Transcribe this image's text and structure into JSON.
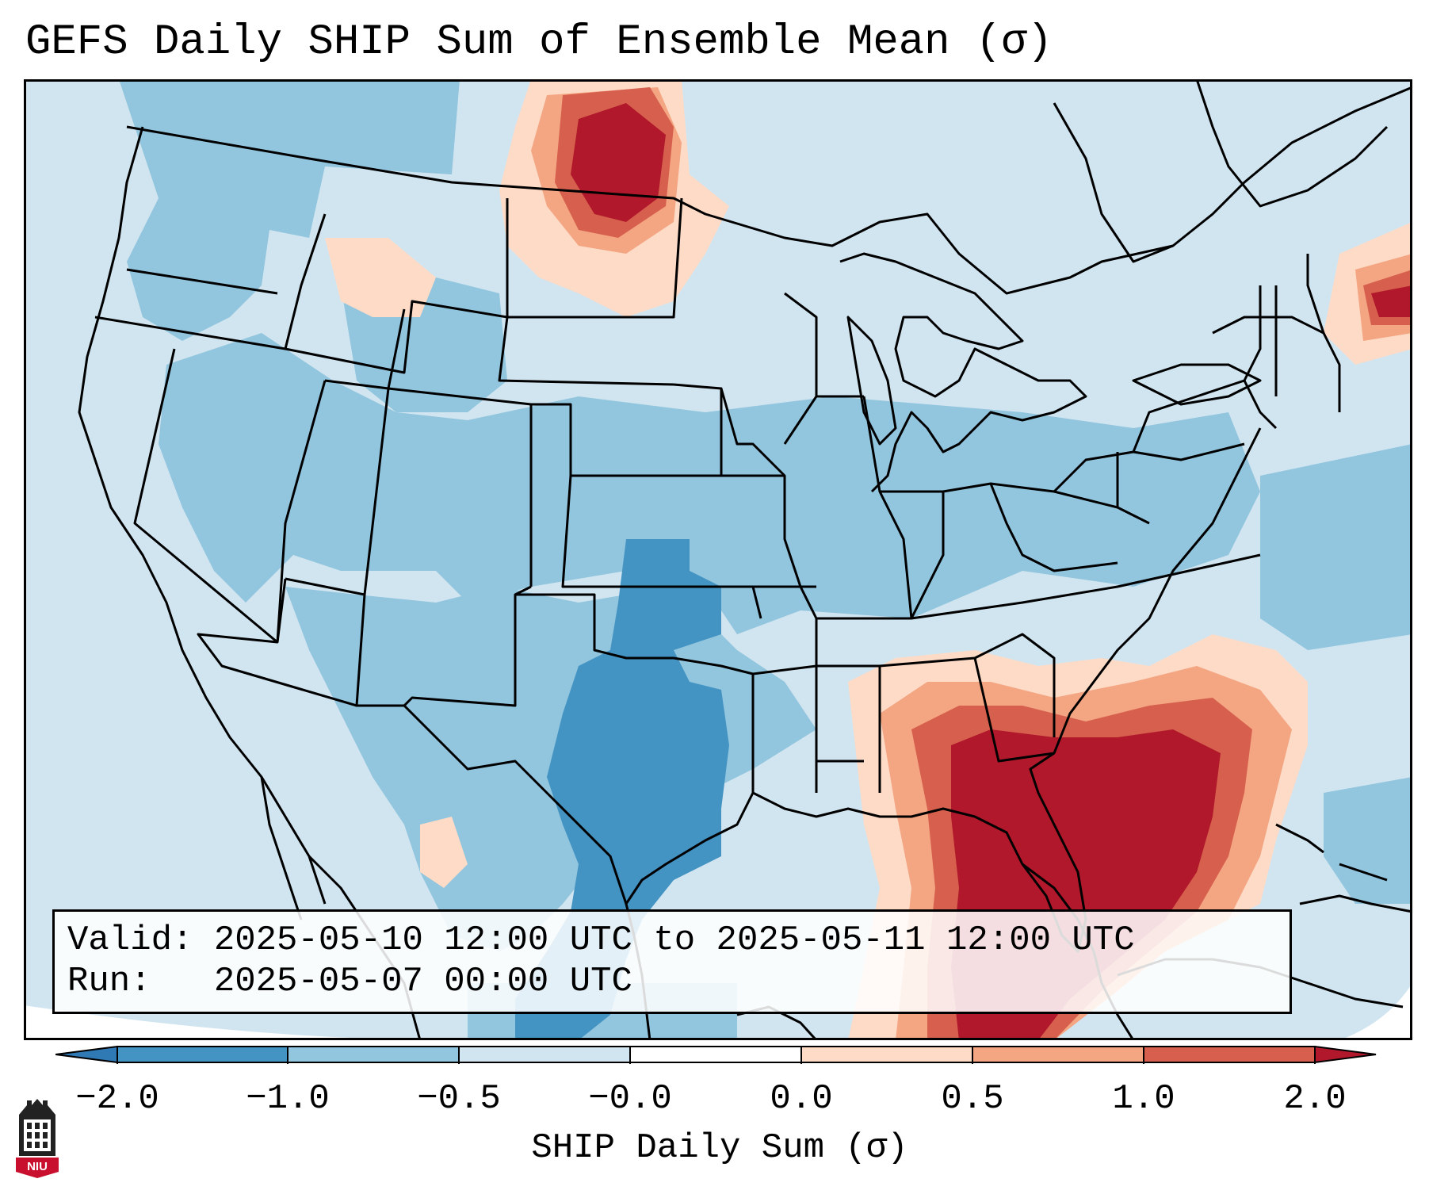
{
  "title": "GEFS Daily SHIP Sum of Ensemble Mean (σ)",
  "info": {
    "valid_line": "Valid: 2025-05-10 12:00 UTC to 2025-05-11 12:00 UTC",
    "run_line": "Run:   2025-05-07 00:00 UTC"
  },
  "colorbar": {
    "label": "SHIP Daily Sum (σ)",
    "ticks": [
      "−2.0",
      "−1.0",
      "−0.5",
      "−0.0",
      "0.0",
      "0.5",
      "1.0",
      "2.0"
    ],
    "colors": [
      "#2f79b5",
      "#4393c3",
      "#92c5de",
      "#d1e5f0",
      "#fddbc7",
      "#f4a582",
      "#d6604d",
      "#b2182b"
    ],
    "extend": "both"
  },
  "map": {
    "region": "contiguous United States",
    "colors": {
      "lvl_neg2": "#4393c3",
      "lvl_neg1": "#92c5de",
      "lvl_neg05": "#d1e5f0",
      "lvl_pos0": "#fddbc7",
      "lvl_pos05": "#f4a582",
      "lvl_pos1": "#d6604d",
      "lvl_pos2": "#b2182b",
      "border": "#000000"
    }
  },
  "logo": {
    "text": "NIU",
    "color": "#c8102e"
  }
}
